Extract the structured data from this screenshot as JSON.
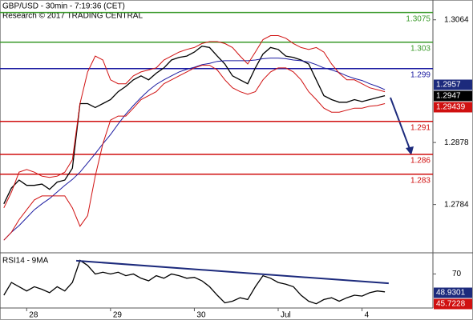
{
  "header": {
    "title": "GBP/USD - 30min - 7:19:36 (CET)",
    "subtitle": "Research © 2017 TRADING CENTRAL"
  },
  "chart_data": [
    {
      "type": "line",
      "categories": [
        null,
        null,
        null,
        "28",
        null,
        null,
        null,
        null,
        null,
        null,
        null,
        null,
        null,
        null,
        "29",
        null,
        null,
        null,
        null,
        null,
        null,
        null,
        null,
        null,
        null,
        "30",
        null,
        null,
        null,
        null,
        null,
        null,
        null,
        null,
        null,
        null,
        "Jul",
        null,
        null,
        null,
        null,
        null,
        null,
        null,
        null,
        null,
        null,
        "4",
        null,
        null,
        null
      ],
      "xlim": [
        -0.5,
        56.3
      ],
      "ylim": [
        1.2712,
        1.3094
      ],
      "yticks": [
        1.2784,
        1.2878,
        1.3064
      ],
      "series": [
        {
          "color": "#000000",
          "values": [
            1.2785,
            1.2809,
            1.2821,
            1.2813,
            1.2813,
            1.2815,
            1.2807,
            1.2818,
            1.2821,
            1.2839,
            1.2937,
            1.2937,
            1.2931,
            1.2937,
            1.2943,
            1.2955,
            1.2963,
            1.2973,
            1.2979,
            1.2973,
            1.2983,
            1.2991,
            1.3003,
            1.3007,
            1.3009,
            1.3015,
            1.3024,
            1.3022,
            1.3009,
            1.2997,
            1.2979,
            1.2973,
            1.2967,
            1.2991,
            1.3012,
            1.3022,
            1.3019,
            1.3009,
            1.3007,
            1.3003,
            1.2997,
            1.2973,
            1.2949,
            1.2943,
            1.2939,
            1.2939,
            1.2943,
            1.294,
            1.2943,
            1.2946,
            1.2949
          ]
        },
        {
          "color": "#1a1aa0",
          "values": [
            1.273,
            1.2742,
            1.2752,
            1.2764,
            1.2776,
            1.2785,
            1.2793,
            1.2803,
            1.2813,
            1.2822,
            1.2833,
            1.2847,
            1.2861,
            1.2876,
            1.289,
            1.2906,
            1.2921,
            1.2934,
            1.2946,
            1.2957,
            1.2966,
            1.2973,
            1.2979,
            1.2985,
            1.2989,
            1.2992,
            1.2996,
            1.2998,
            1.3001,
            1.3002,
            1.3002,
            1.3002,
            1.3002,
            1.3003,
            1.3005,
            1.3006,
            1.3006,
            1.3005,
            1.3003,
            1.3002,
            1.3,
            1.2996,
            1.2991,
            1.2988,
            1.2984,
            1.2979,
            1.2975,
            1.2972,
            1.2967,
            1.2963,
            1.2958
          ]
        },
        {
          "color": "#d01010",
          "values": [
            1.2779,
            1.2803,
            1.2833,
            1.2837,
            1.2833,
            1.2827,
            1.2825,
            1.2827,
            1.2833,
            1.2852,
            1.2937,
            1.2985,
            1.3009,
            1.3003,
            1.2973,
            1.2967,
            1.2967,
            1.2979,
            1.2985,
            1.2988,
            1.2991,
            1.3003,
            1.3009,
            1.3015,
            1.3019,
            1.3022,
            1.3028,
            1.3031,
            1.3031,
            1.3028,
            1.3022,
            1.3009,
            1.2997,
            1.3015,
            1.3034,
            1.304,
            1.304,
            1.3036,
            1.3028,
            1.3022,
            1.3019,
            1.3022,
            1.3015,
            1.2997,
            1.2983,
            1.2973,
            1.2973,
            1.2967,
            1.2961,
            1.2958,
            1.2955
          ]
        },
        {
          "color": "#d01010",
          "values": [
            1.273,
            1.2742,
            1.2761,
            1.2776,
            1.2791,
            1.2797,
            1.2797,
            1.2797,
            1.2797,
            1.2779,
            1.2751,
            1.2767,
            1.2827,
            1.2876,
            1.2912,
            1.2918,
            1.2918,
            1.293,
            1.2943,
            1.2949,
            1.2955,
            1.2967,
            1.2973,
            1.2979,
            1.2985,
            1.2991,
            1.2995,
            1.2995,
            1.2988,
            1.2973,
            1.2961,
            1.2955,
            1.2951,
            1.2955,
            1.2973,
            1.2985,
            1.2991,
            1.2991,
            1.2985,
            1.2973,
            1.2955,
            1.2943,
            1.293,
            1.2924,
            1.2924,
            1.2927,
            1.293,
            1.293,
            1.2933,
            1.2934,
            1.2937
          ]
        }
      ],
      "levels": [
        {
          "value": 1.3075,
          "color": "#3a9a2a"
        },
        {
          "value": 1.303,
          "color": "#3a9a2a"
        },
        {
          "value": 1.299,
          "color": "#1a1aa0"
        },
        {
          "value": 1.291,
          "color": "#d01010"
        },
        {
          "value": 1.286,
          "color": "#d01010"
        },
        {
          "value": 1.283,
          "color": "#d01010"
        }
      ],
      "price_labels": [
        {
          "value": 1.2957,
          "color": "#1c2a7c"
        },
        {
          "value": 1.2947,
          "color": "#000000"
        },
        {
          "value": 1.29439,
          "color": "#d01010"
        }
      ]
    },
    {
      "type": "line",
      "title": "RSI14 - 9MA",
      "ylim": [
        30,
        93
      ],
      "yticks": [
        70
      ],
      "series": [
        {
          "color": "#000000",
          "values": [
            45,
            60,
            55,
            50,
            55,
            52,
            48,
            55,
            50,
            60,
            86,
            80,
            70,
            72,
            70,
            72,
            68,
            70,
            65,
            62,
            68,
            65,
            70,
            68,
            65,
            66,
            62,
            55,
            45,
            36,
            38,
            42,
            40,
            55,
            68,
            65,
            60,
            58,
            55,
            45,
            38,
            35,
            40,
            42,
            38,
            42,
            45,
            44,
            48,
            50,
            49
          ]
        }
      ],
      "trendline": {
        "color": "#1c2a7c",
        "x": [
          9.5,
          50.5
        ],
        "values": [
          85.6,
          59
        ]
      },
      "value_labels": [
        {
          "value": 48.9301,
          "color": "#1c2a7c"
        },
        {
          "value": 45.7228,
          "color": "#d01010"
        }
      ]
    }
  ]
}
